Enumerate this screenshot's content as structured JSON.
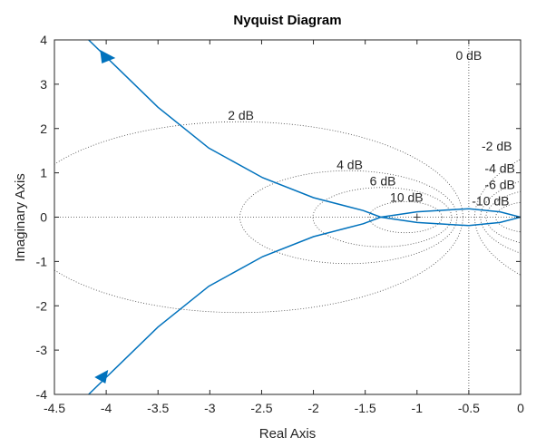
{
  "chart_data": {
    "type": "line",
    "title": "Nyquist Diagram",
    "xlabel": "Real Axis",
    "ylabel": "Imaginary Axis",
    "xlim": [
      -4.5,
      0
    ],
    "ylim": [
      -4,
      4
    ],
    "xticks": [
      -4.5,
      -4,
      -3.5,
      -3,
      -2.5,
      -2,
      -1.5,
      -1,
      -0.5,
      0
    ],
    "xtick_labels": [
      "-4.5",
      "-4",
      "-3.5",
      "-3",
      "-2.5",
      "-2",
      "-1.5",
      "-1",
      "-0.5",
      "0"
    ],
    "yticks": [
      4,
      3,
      2,
      1,
      0,
      -1,
      -2,
      -3,
      -4
    ],
    "ytick_labels": [
      "4",
      "3",
      "2",
      "1",
      "0",
      "-1",
      "-2",
      "-3",
      "-4"
    ],
    "grid": "M-circles (dotted)",
    "line_color": "#0072BD",
    "series": [
      {
        "x": [
          -4.17,
          -3.99,
          -3.5,
          -3.01,
          -2.49,
          -2.0,
          -1.52,
          -1.35,
          -1.0,
          -0.5,
          -0.2,
          0
        ],
        "y": [
          4.0,
          3.59,
          2.48,
          1.56,
          0.89,
          0.44,
          0.15,
          0.0,
          -0.12,
          -0.19,
          -0.12,
          0
        ]
      },
      {
        "x": [
          -4.17,
          -3.99,
          -3.5,
          -3.01,
          -2.49,
          -2.0,
          -1.52,
          -1.35,
          -1.0,
          -0.5,
          -0.2,
          0
        ],
        "y": [
          -4.0,
          -3.59,
          -2.48,
          -1.56,
          -0.89,
          -0.44,
          -0.15,
          0.0,
          0.12,
          0.19,
          0.12,
          0
        ]
      }
    ],
    "m_circles": [
      {
        "db": 2,
        "label": "2 dB",
        "label_at": [
          -2.7,
          2.2
        ]
      },
      {
        "db": 4,
        "label": "4 dB",
        "label_at": [
          -1.65,
          1.08
        ]
      },
      {
        "db": 6,
        "label": "6 dB",
        "label_at": [
          -1.33,
          0.72
        ]
      },
      {
        "db": 10,
        "label": "10 dB",
        "label_at": [
          -1.1,
          0.4
        ]
      },
      {
        "db": -2,
        "label": "-2 dB",
        "label_at": [
          -0.23,
          1.5
        ]
      },
      {
        "db": -4,
        "label": "-4 dB",
        "label_at": [
          -0.2,
          1.0
        ]
      },
      {
        "db": -6,
        "label": "-6 dB",
        "label_at": [
          -0.2,
          0.78
        ]
      },
      {
        "db": -10,
        "label": "-10 dB",
        "label_at": [
          -0.29,
          0.5
        ]
      },
      {
        "db": 0,
        "label": "0 dB",
        "label_at": [
          -0.5,
          3.55
        ]
      }
    ]
  }
}
